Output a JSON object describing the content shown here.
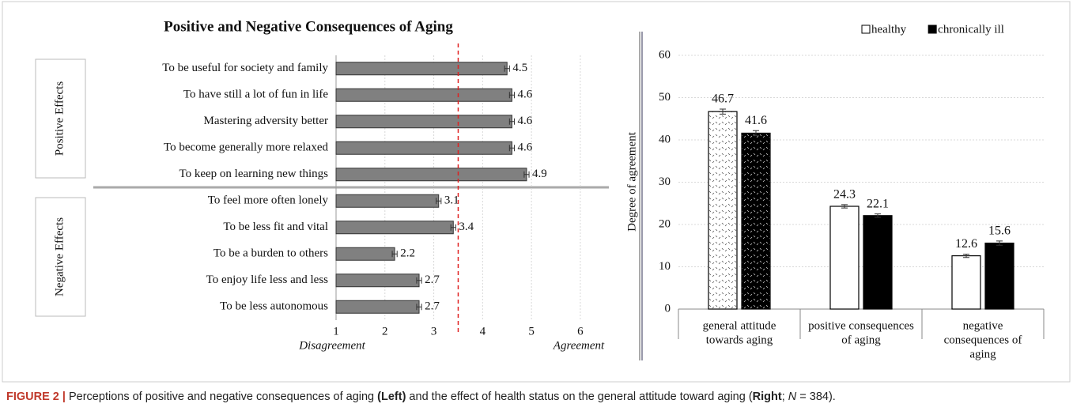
{
  "chart_data": [
    {
      "type": "hbar",
      "title": "Positive and Negative Consequences of Aging",
      "groups": [
        "Positive Effects",
        "Negative Effects"
      ],
      "categories": [
        "To be useful for society and family",
        "To have still a lot of fun in life",
        "Mastering adversity better",
        "To become generally more relaxed",
        "To keep on learning new things",
        "To feel more often lonely",
        "To be less fit and vital",
        "To be a burden to others",
        "To enjoy life less and less",
        "To be less autonomous"
      ],
      "values": [
        4.5,
        4.6,
        4.6,
        4.6,
        4.9,
        3.1,
        3.4,
        2.2,
        2.7,
        2.7
      ],
      "errors": [
        0.05,
        0.05,
        0.05,
        0.05,
        0.05,
        0.05,
        0.05,
        0.05,
        0.05,
        0.05
      ],
      "color": "#808080",
      "xlim": [
        1,
        6.6
      ],
      "xticks": [
        1,
        2,
        3,
        4,
        5,
        6
      ],
      "reference_line": 3.5,
      "x_label_left": "Disagreement",
      "x_label_right": "Agreement",
      "grid": true
    },
    {
      "type": "grouped_bar",
      "categories": [
        [
          "general attitude",
          "towards aging"
        ],
        [
          "positive consequences",
          "of aging"
        ],
        [
          "negative",
          "consequences of",
          "aging"
        ]
      ],
      "series": [
        {
          "name": "healthy",
          "color": "#ffffff",
          "values": [
            46.7,
            24.3,
            12.6
          ],
          "errors": [
            0.6,
            0.4,
            0.4
          ]
        },
        {
          "name": "chronically ill",
          "color": "#000000",
          "values": [
            41.6,
            22.1,
            15.6
          ],
          "errors": [
            0.6,
            0.4,
            0.5
          ]
        }
      ],
      "y_label": "Degree of agreement",
      "ylim": [
        0,
        60
      ],
      "yticks": [
        0,
        10,
        20,
        30,
        40,
        50,
        60
      ],
      "grid": true,
      "legend": "top-right"
    }
  ],
  "caption": [
    "FIGURE 2 |",
    " Perceptions of positive and negative consequences of aging ",
    "(Left)",
    " and the effect of health status on the general attitude toward aging (",
    "Right",
    "; ",
    "N",
    " = 384)."
  ]
}
